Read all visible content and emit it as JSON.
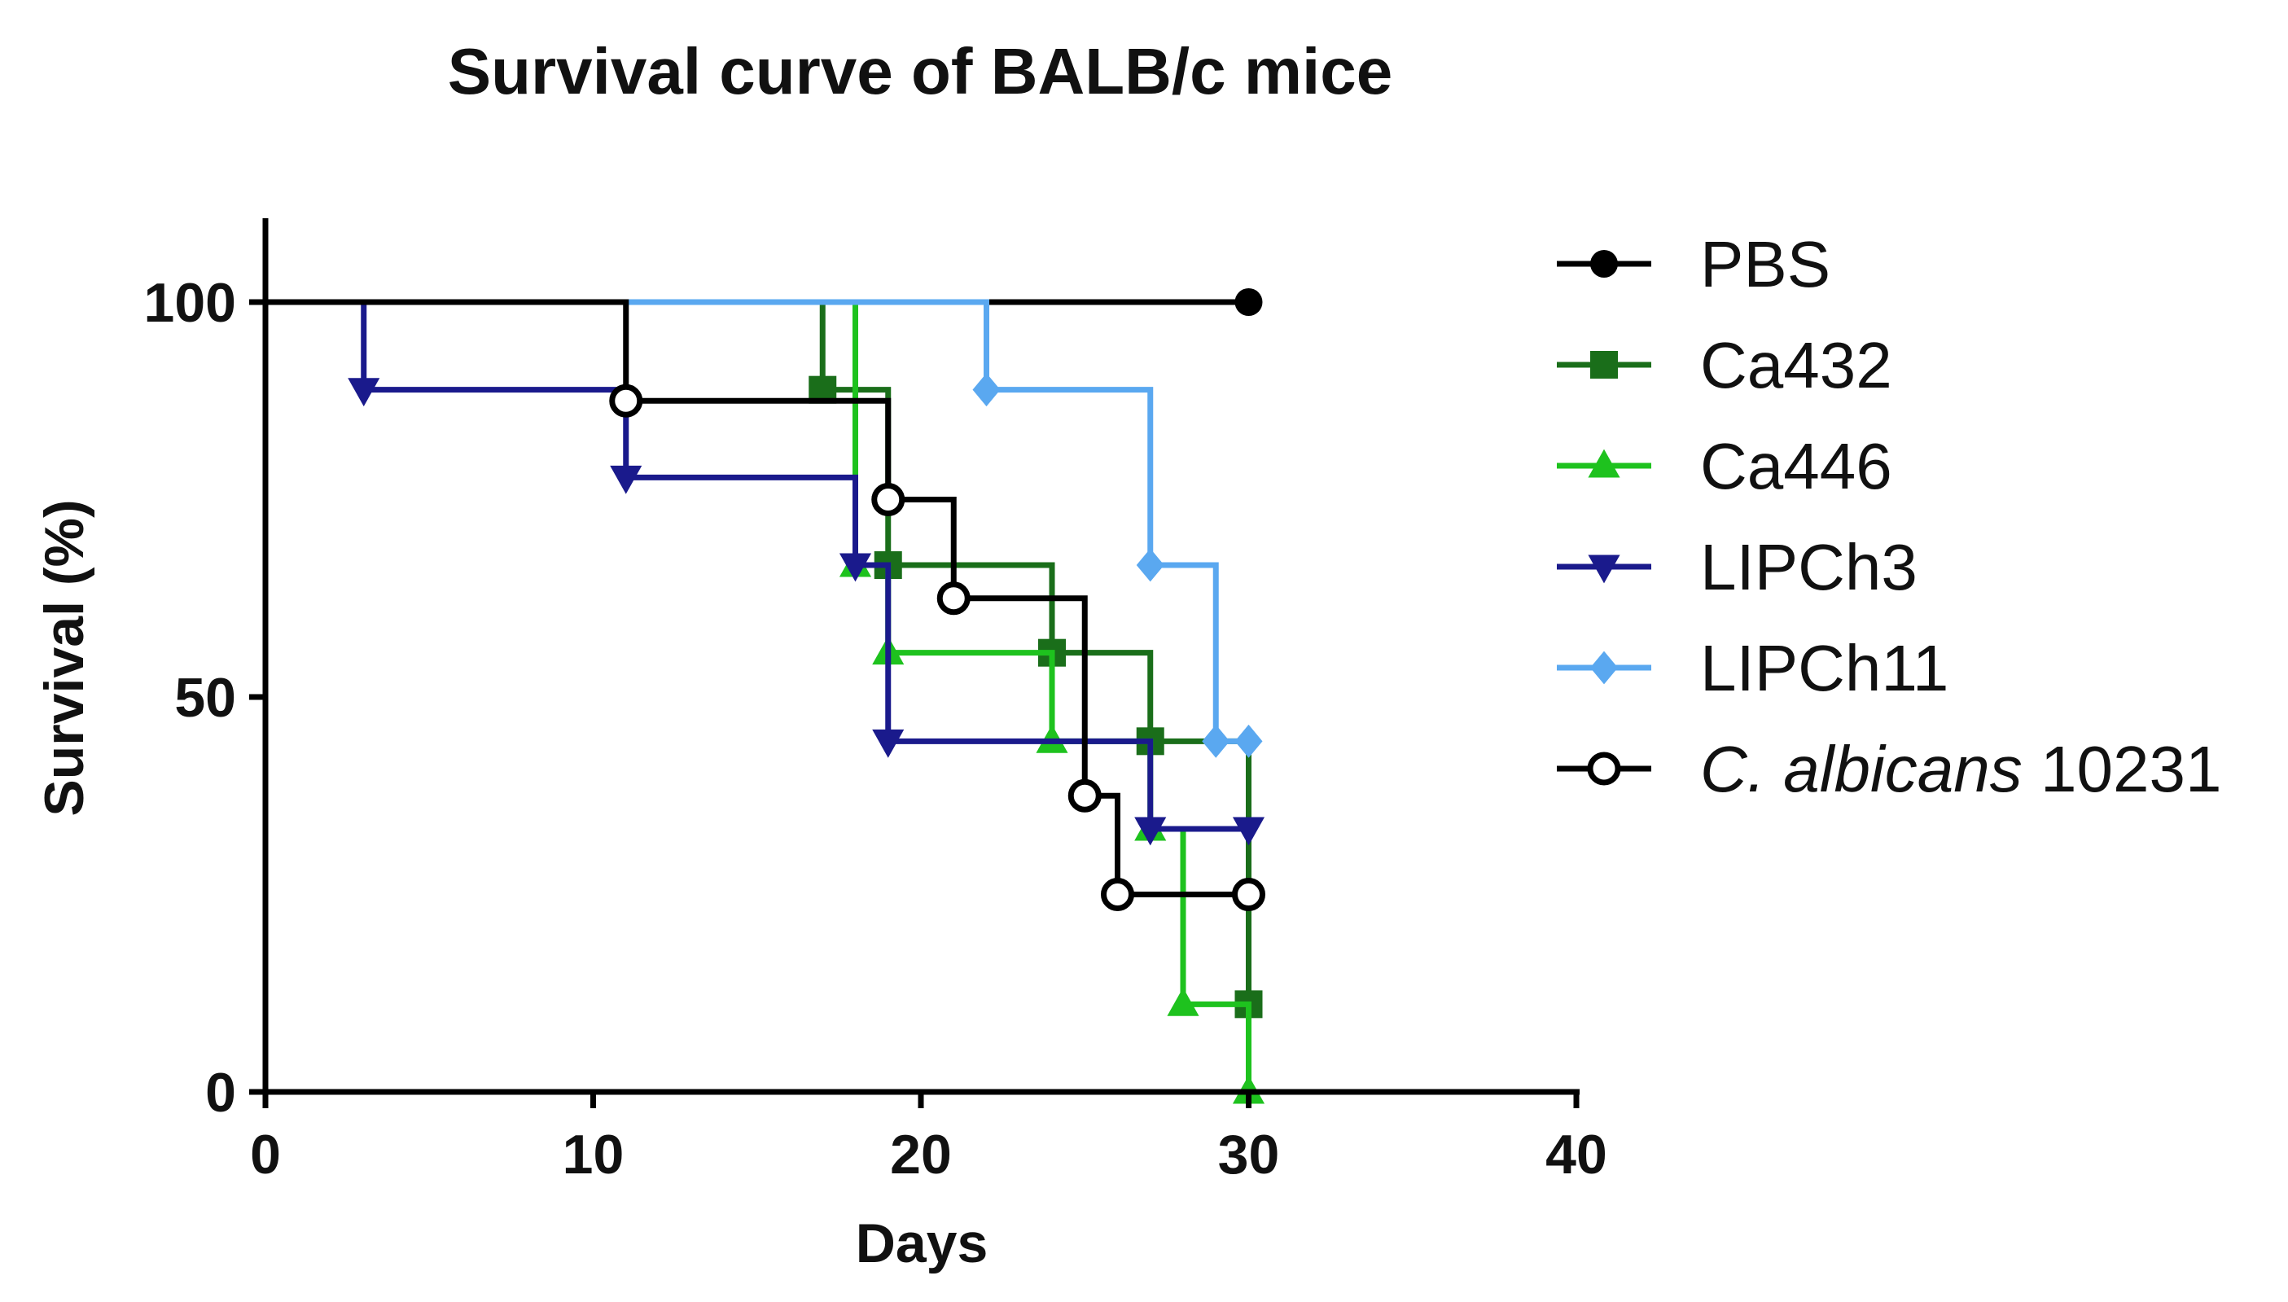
{
  "chart_data": {
    "type": "line",
    "subtype": "kaplan-meier step survival curve",
    "title": "Survival curve of BALB/c mice",
    "xlabel": "Days",
    "ylabel": "Survival (%)",
    "xlim": [
      0,
      40
    ],
    "ylim": [
      0,
      110
    ],
    "xticks": [
      0,
      10,
      20,
      30,
      40
    ],
    "yticks": [
      0,
      50,
      100
    ],
    "legend_position": "right",
    "series": [
      {
        "name": "PBS",
        "color": "#000000",
        "marker": "circle-filled",
        "steps": [
          [
            0,
            100
          ],
          [
            30,
            100
          ]
        ],
        "markers": [
          [
            30,
            100
          ]
        ]
      },
      {
        "name": "Ca432",
        "color": "#1a6e1a",
        "marker": "square",
        "steps": [
          [
            0,
            100
          ],
          [
            17,
            88.9
          ],
          [
            19,
            66.7
          ],
          [
            24,
            55.6
          ],
          [
            27,
            44.4
          ],
          [
            30,
            11.1
          ]
        ],
        "markers": [
          [
            17,
            88.9
          ],
          [
            19,
            66.7
          ],
          [
            24,
            55.6
          ],
          [
            27,
            44.4
          ],
          [
            30,
            11.1
          ]
        ]
      },
      {
        "name": "Ca446",
        "color": "#1ec21e",
        "marker": "triangle-up",
        "steps": [
          [
            0,
            100
          ],
          [
            18,
            66.7
          ],
          [
            19,
            55.6
          ],
          [
            24,
            44.4
          ],
          [
            27,
            33.3
          ],
          [
            28,
            11.1
          ],
          [
            30,
            0
          ]
        ],
        "markers": [
          [
            18,
            66.7
          ],
          [
            19,
            55.6
          ],
          [
            24,
            44.4
          ],
          [
            27,
            33.3
          ],
          [
            28,
            11.1
          ],
          [
            30,
            0
          ]
        ]
      },
      {
        "name": "LIPCh3",
        "color": "#1a1a8c",
        "marker": "triangle-down",
        "steps": [
          [
            0,
            100
          ],
          [
            3,
            88.9
          ],
          [
            11,
            77.8
          ],
          [
            18,
            66.7
          ],
          [
            19,
            44.4
          ],
          [
            27,
            33.3
          ],
          [
            30,
            33.3
          ]
        ],
        "markers": [
          [
            3,
            88.9
          ],
          [
            11,
            77.8
          ],
          [
            18,
            66.7
          ],
          [
            19,
            44.4
          ],
          [
            27,
            33.3
          ],
          [
            30,
            33.3
          ]
        ]
      },
      {
        "name": "LIPCh11",
        "color": "#5aa8f0",
        "marker": "diamond",
        "steps": [
          [
            0,
            100
          ],
          [
            22,
            88.9
          ],
          [
            27,
            66.7
          ],
          [
            29,
            44.4
          ],
          [
            30,
            44.4
          ]
        ],
        "markers": [
          [
            22,
            88.9
          ],
          [
            27,
            66.7
          ],
          [
            29,
            44.4
          ],
          [
            30,
            44.4
          ]
        ]
      },
      {
        "name": "C. albicans 10231",
        "name_italic": "C. albicans",
        "name_rest": " 10231",
        "color": "#000000",
        "marker": "circle-open",
        "steps": [
          [
            0,
            100
          ],
          [
            11,
            87.5
          ],
          [
            19,
            75
          ],
          [
            21,
            62.5
          ],
          [
            25,
            37.5
          ],
          [
            26,
            25
          ],
          [
            30,
            25
          ]
        ],
        "markers": [
          [
            11,
            87.5
          ],
          [
            19,
            75
          ],
          [
            21,
            62.5
          ],
          [
            25,
            37.5
          ],
          [
            26,
            25
          ],
          [
            30,
            25
          ]
        ]
      }
    ]
  }
}
